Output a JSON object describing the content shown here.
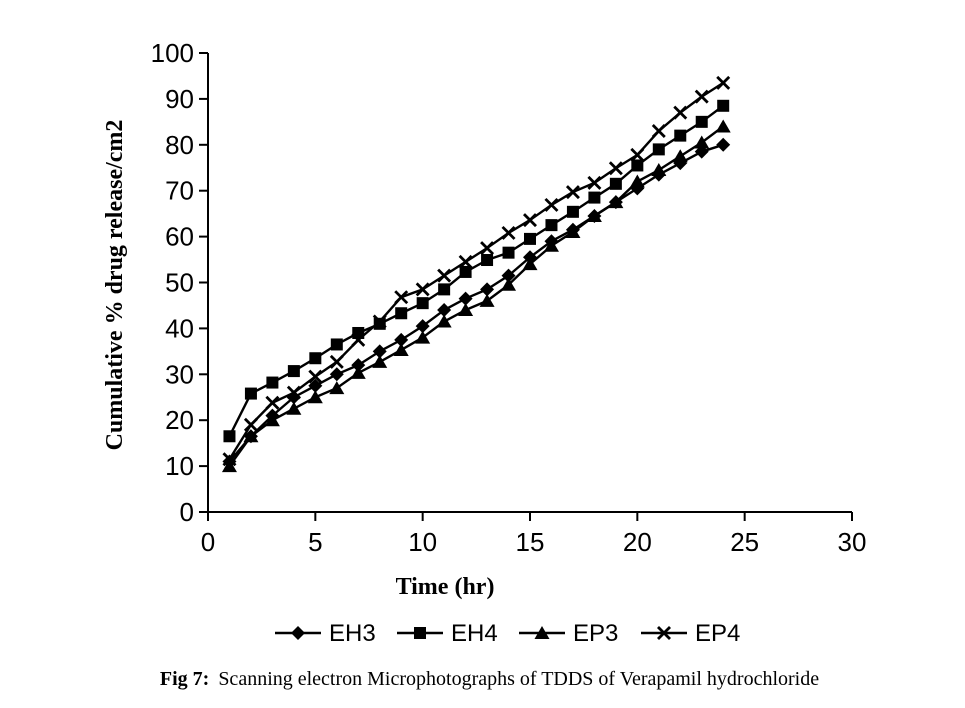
{
  "figure": {
    "caption_prefix": "Fig 7:",
    "caption_text": "Scanning electron Microphotographs of TDDS of Verapamil hydrochloride"
  },
  "chart_data": {
    "type": "line",
    "title": "",
    "xlabel": "Time (hr)",
    "ylabel": "Cumulative % drug release/cm2",
    "xlim": [
      0,
      30
    ],
    "ylim": [
      0,
      100
    ],
    "xticks": [
      0,
      5,
      10,
      15,
      20,
      25,
      30
    ],
    "yticks": [
      0,
      10,
      20,
      30,
      40,
      50,
      60,
      70,
      80,
      90,
      100
    ],
    "grid": false,
    "legend_position": "bottom",
    "line_color": "#000000",
    "background_color": "#ffffff",
    "x": [
      1,
      2,
      3,
      4,
      5,
      6,
      7,
      8,
      9,
      10,
      11,
      12,
      13,
      14,
      15,
      16,
      17,
      18,
      19,
      20,
      21,
      22,
      23,
      24
    ],
    "series": [
      {
        "name": "EH3",
        "marker": "diamond",
        "values": [
          11,
          16.5,
          21,
          25,
          27.5,
          30,
          32,
          35,
          37.5,
          40.5,
          44,
          46.5,
          48.5,
          51.5,
          55.5,
          59,
          61.5,
          64.5,
          67.5,
          70.5,
          73.5,
          76,
          78.5,
          80
        ]
      },
      {
        "name": "EH4",
        "marker": "square",
        "values": [
          16.5,
          25.8,
          28.2,
          30.7,
          33.5,
          36.5,
          39,
          41,
          43.3,
          45.5,
          48.5,
          52.3,
          54.9,
          56.5,
          59.5,
          62.5,
          65.4,
          68.5,
          71.5,
          75.5,
          79,
          82,
          85,
          88.5
        ]
      },
      {
        "name": "EP3",
        "marker": "triangle",
        "values": [
          10,
          16.5,
          20,
          22.5,
          25,
          27,
          30.3,
          32.7,
          35.3,
          38,
          41.5,
          44,
          46,
          49.5,
          54,
          58,
          61,
          64.5,
          67.5,
          72,
          74.5,
          77.5,
          80.5,
          84
        ]
      },
      {
        "name": "EP4",
        "marker": "x",
        "values": [
          11.5,
          19,
          23.8,
          26,
          29.5,
          32.7,
          37.5,
          41.5,
          46.8,
          48.5,
          51.5,
          54.5,
          57.5,
          60.8,
          63.6,
          66.9,
          69.7,
          71.7,
          74.9,
          77.8,
          83,
          87,
          90.5,
          93.5
        ]
      }
    ]
  }
}
